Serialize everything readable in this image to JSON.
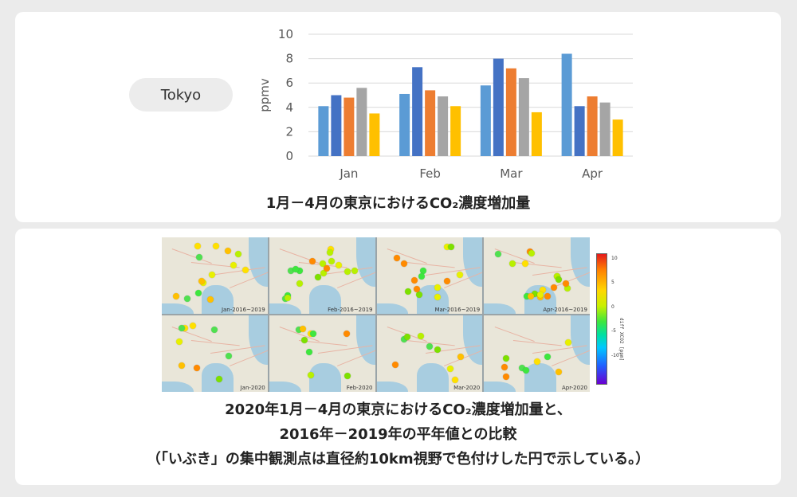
{
  "top_panel": {
    "city": "Tokyo",
    "caption": "1月－4月の東京におけるCO₂濃度増加量"
  },
  "chart_data": {
    "type": "bar",
    "title": "",
    "xlabel": "",
    "ylabel": "ppmv",
    "ylim": [
      0,
      10
    ],
    "yticks": [
      0,
      2,
      4,
      6,
      8,
      10
    ],
    "grid": true,
    "categories": [
      "Jan",
      "Feb",
      "Mar",
      "Apr"
    ],
    "series": [
      {
        "color": "#5b9bd5",
        "values": [
          4.1,
          5.1,
          5.8,
          8.4
        ]
      },
      {
        "color": "#4472c4",
        "values": [
          5.0,
          7.3,
          8.0,
          4.1
        ]
      },
      {
        "color": "#ed7d31",
        "values": [
          4.8,
          5.4,
          7.2,
          4.9
        ]
      },
      {
        "color": "#a5a5a5",
        "values": [
          5.6,
          4.9,
          6.4,
          4.4
        ]
      },
      {
        "color": "#ffc000",
        "values": [
          3.5,
          4.1,
          3.6,
          3.0
        ]
      }
    ]
  },
  "bottom_panel": {
    "caption_lines": [
      "2020年1月－4月の東京におけるCO₂濃度増加量と、",
      "2016年－2019年の平年値との比較",
      "（「いぶき」の集中観測点は直径約10km視野で色付けした円で示している。）"
    ],
    "maps": [
      {
        "label": "Jan-2016~2019"
      },
      {
        "label": "Feb-2016~2019"
      },
      {
        "label": "Mar-2016~2019"
      },
      {
        "label": "Apr-2016~2019"
      },
      {
        "label": "Jan-2020"
      },
      {
        "label": "Feb-2020"
      },
      {
        "label": "Mar-2020"
      },
      {
        "label": "Apr-2020"
      }
    ],
    "colorbar": {
      "label": "diff XCO2 [ppm]",
      "ticks": [
        "10",
        "5",
        "0",
        "-5",
        "-10"
      ]
    }
  }
}
